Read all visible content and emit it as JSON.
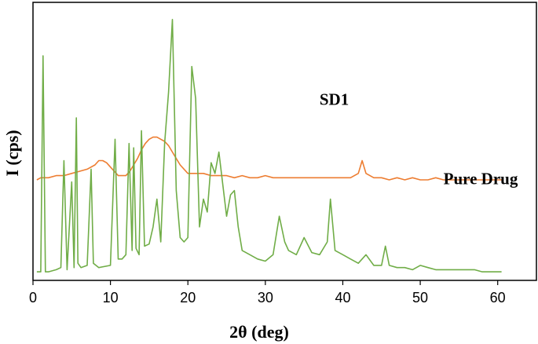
{
  "chart_data": {
    "type": "line",
    "title": "",
    "xlabel": "2θ (deg)",
    "ylabel": "I (cps)",
    "xlim": [
      0,
      65
    ],
    "xticks": [
      0,
      10,
      20,
      30,
      40,
      50,
      60
    ],
    "yticks_shown": false,
    "grid": false,
    "legend": "none",
    "series": [
      {
        "name": "SD1",
        "color": "#ED7D31",
        "x": [
          0.5,
          1,
          2,
          3,
          4,
          5,
          6,
          7,
          8,
          8.5,
          9,
          9.5,
          10,
          10.5,
          11,
          12,
          12.5,
          13,
          13.5,
          14,
          14.5,
          15,
          15.5,
          16,
          16.5,
          17,
          17.5,
          18,
          18.5,
          19,
          20,
          21,
          22,
          23,
          24,
          25,
          26,
          27,
          28,
          29,
          30,
          31,
          32,
          33,
          34,
          35,
          36,
          37,
          38,
          39,
          40,
          41,
          42,
          42.5,
          43,
          44,
          45,
          46,
          47,
          48,
          49,
          50,
          51,
          52,
          53,
          54,
          55,
          56,
          57,
          58,
          59,
          60,
          60.5
        ],
        "y": [
          47,
          48,
          48,
          49,
          49,
          50,
          51,
          52,
          54,
          56,
          56,
          55,
          53,
          51,
          49,
          49,
          51,
          54,
          57,
          61,
          64,
          66,
          67,
          67,
          66,
          65,
          63,
          60,
          57,
          54,
          50,
          50,
          50,
          49,
          49,
          49,
          48,
          49,
          48,
          48,
          49,
          48,
          48,
          48,
          48,
          48,
          48,
          48,
          48,
          48,
          48,
          48,
          50,
          56,
          50,
          48,
          48,
          47,
          48,
          47,
          48,
          47,
          47,
          48,
          47,
          47,
          47,
          47,
          47,
          47,
          47,
          47,
          47
        ]
      },
      {
        "name": "Pure Drug",
        "color": "#70AD47",
        "x": [
          0.5,
          1,
          1.3,
          1.6,
          2,
          3,
          3.6,
          4,
          4.4,
          5,
          5.3,
          5.6,
          5.8,
          6.2,
          7,
          7.5,
          7.8,
          8.5,
          10,
          10.6,
          11,
          11.5,
          12,
          12.4,
          12.8,
          13,
          13.3,
          13.7,
          14,
          14.4,
          15,
          15.5,
          16,
          16.5,
          17,
          17.5,
          18,
          18.5,
          19,
          19.5,
          20,
          20.5,
          21,
          21.5,
          22,
          22.5,
          23,
          23.5,
          24,
          24.5,
          25,
          25.5,
          26,
          26.5,
          27,
          28,
          29,
          30,
          31,
          31.8,
          32.5,
          33,
          34,
          35,
          36,
          37,
          38,
          38.4,
          39,
          40,
          41,
          42,
          43,
          44,
          45,
          45.5,
          46,
          47,
          48,
          49,
          50,
          51,
          52,
          53,
          54,
          55,
          56,
          57,
          58,
          59,
          60,
          60.5
        ],
        "y": [
          4,
          4,
          105,
          4,
          4,
          5,
          6,
          56,
          5,
          46,
          6,
          76,
          8,
          6,
          7,
          52,
          8,
          6,
          7,
          66,
          10,
          10,
          12,
          64,
          14,
          62,
          15,
          12,
          70,
          16,
          17,
          25,
          38,
          18,
          64,
          88,
          122,
          42,
          20,
          18,
          20,
          100,
          85,
          25,
          38,
          32,
          55,
          50,
          60,
          45,
          30,
          40,
          42,
          25,
          14,
          12,
          10,
          9,
          12,
          30,
          18,
          14,
          12,
          20,
          13,
          12,
          18,
          38,
          14,
          12,
          10,
          8,
          12,
          7,
          7,
          16,
          7,
          6,
          6,
          5,
          7,
          6,
          5,
          5,
          5,
          5,
          5,
          5,
          4,
          4,
          4,
          4
        ]
      }
    ],
    "annotations": [
      {
        "text": "SD1",
        "x": 37,
        "y": 82
      },
      {
        "text": "Pure Drug",
        "x": 53,
        "y": 45
      }
    ]
  }
}
